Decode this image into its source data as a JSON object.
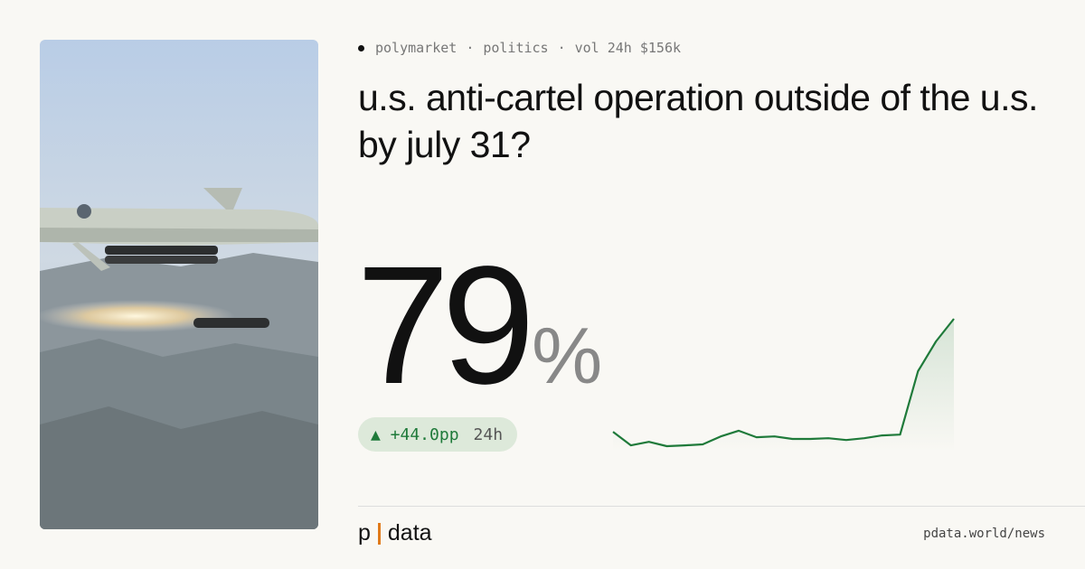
{
  "meta": {
    "source": "polymarket",
    "category": "politics",
    "volume": "vol 24h $156k",
    "separator": "·"
  },
  "title": "u.s. anti-cartel operation outside of the u.s. by july 31?",
  "probability": {
    "value": "79",
    "unit": "%"
  },
  "change": {
    "delta": "▲ +44.0pp",
    "period": "24h"
  },
  "sparkline": {
    "type": "line",
    "color": "#1f7a3a",
    "values": [
      35,
      29.7,
      31.1,
      29.4,
      29.7,
      30.1,
      33.2,
      35.4,
      32.9,
      33.2,
      32.2,
      32.2,
      32.5,
      31.8,
      32.5,
      33.6,
      33.9,
      58.6,
      70.2,
      79
    ]
  },
  "footer": {
    "brand_left": "p",
    "brand_right": "data",
    "url": "pdata.world/news"
  }
}
